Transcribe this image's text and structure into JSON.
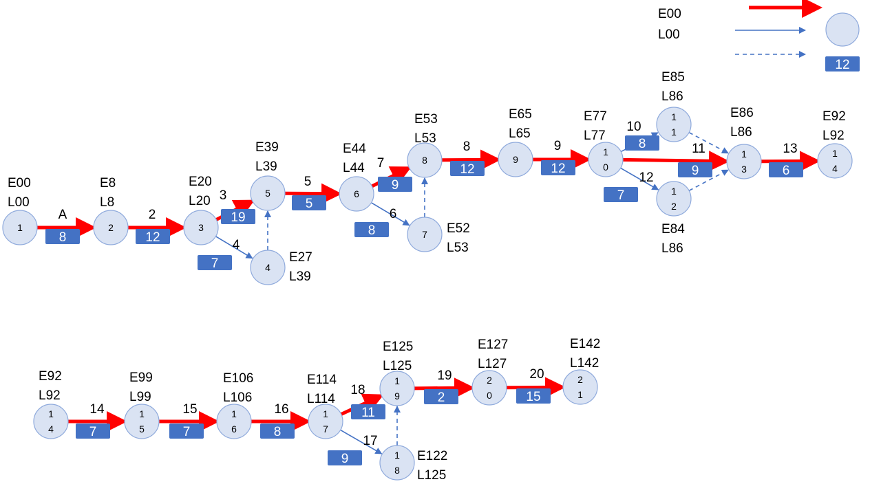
{
  "colors": {
    "critical": "#ff0000",
    "normal": "#4472c4",
    "node_fill": "#dae3f3",
    "node_stroke": "#8faadc",
    "box_fill": "#4472c4",
    "box_text": "#ffffff",
    "text": "#000000"
  },
  "legend": {
    "early": "E00",
    "late": "L00",
    "box_value": "12"
  },
  "nodes": [
    {
      "id": "1",
      "label": "1",
      "early": "E00",
      "late": "L00"
    },
    {
      "id": "2",
      "label": "2",
      "early": "E8",
      "late": "L8"
    },
    {
      "id": "3",
      "label": "3",
      "early": "E20",
      "late": "L20"
    },
    {
      "id": "4",
      "label": "4",
      "early": "E27",
      "late": "L39"
    },
    {
      "id": "5",
      "label": "5",
      "early": "E39",
      "late": "L39"
    },
    {
      "id": "6",
      "label": "6",
      "early": "E44",
      "late": "L44"
    },
    {
      "id": "7",
      "label": "7",
      "early": "E52",
      "late": "L53"
    },
    {
      "id": "8",
      "label": "8",
      "early": "E53",
      "late": "L53"
    },
    {
      "id": "9",
      "label": "9",
      "early": "E65",
      "late": "L65"
    },
    {
      "id": "10",
      "label": "1\n0",
      "early": "E77",
      "late": "L77"
    },
    {
      "id": "11",
      "label": "1\n1",
      "early": "E85",
      "late": "L86"
    },
    {
      "id": "12",
      "label": "1\n2",
      "early": "E84",
      "late": "L86"
    },
    {
      "id": "13",
      "label": "1\n3",
      "early": "E86",
      "late": "L86"
    },
    {
      "id": "14",
      "label": "1\n4",
      "early": "E92",
      "late": "L92"
    },
    {
      "id": "14b",
      "label": "1\n4",
      "early": "E92",
      "late": "L92"
    },
    {
      "id": "15",
      "label": "1\n5",
      "early": "E99",
      "late": "L99"
    },
    {
      "id": "16",
      "label": "1\n6",
      "early": "E106",
      "late": "L106"
    },
    {
      "id": "17",
      "label": "1\n7",
      "early": "E114",
      "late": "L114"
    },
    {
      "id": "18",
      "label": "1\n8",
      "early": "E122",
      "late": "L125"
    },
    {
      "id": "19",
      "label": "1\n9",
      "early": "E125",
      "late": "L125"
    },
    {
      "id": "20",
      "label": "2\n0",
      "early": "E127",
      "late": "L127"
    },
    {
      "id": "21",
      "label": "2\n1",
      "early": "E142",
      "late": "L142"
    }
  ],
  "edges": [
    {
      "from": "1",
      "to": "2",
      "activity": "A",
      "duration": "8",
      "kind": "critical"
    },
    {
      "from": "2",
      "to": "3",
      "activity": "2",
      "duration": "12",
      "kind": "critical"
    },
    {
      "from": "3",
      "to": "5",
      "activity": "3",
      "duration": "19",
      "kind": "critical"
    },
    {
      "from": "3",
      "to": "4",
      "activity": "4",
      "duration": "7",
      "kind": "normal"
    },
    {
      "from": "4",
      "to": "5",
      "activity": "",
      "duration": "",
      "kind": "dummy"
    },
    {
      "from": "5",
      "to": "6",
      "activity": "5",
      "duration": "5",
      "kind": "critical"
    },
    {
      "from": "6",
      "to": "8",
      "activity": "7",
      "duration": "9",
      "kind": "critical"
    },
    {
      "from": "6",
      "to": "7",
      "activity": "6",
      "duration": "8",
      "kind": "normal"
    },
    {
      "from": "7",
      "to": "8",
      "activity": "",
      "duration": "",
      "kind": "dummy"
    },
    {
      "from": "8",
      "to": "9",
      "activity": "8",
      "duration": "12",
      "kind": "critical"
    },
    {
      "from": "9",
      "to": "10",
      "activity": "9",
      "duration": "12",
      "kind": "critical"
    },
    {
      "from": "10",
      "to": "11",
      "activity": "10",
      "duration": "8",
      "kind": "normal"
    },
    {
      "from": "10",
      "to": "13",
      "activity": "11",
      "duration": "9",
      "kind": "critical"
    },
    {
      "from": "10",
      "to": "12",
      "activity": "12",
      "duration": "7",
      "kind": "normal"
    },
    {
      "from": "11",
      "to": "13",
      "activity": "",
      "duration": "",
      "kind": "dummy"
    },
    {
      "from": "12",
      "to": "13",
      "activity": "",
      "duration": "",
      "kind": "dummy"
    },
    {
      "from": "13",
      "to": "14",
      "activity": "13",
      "duration": "6",
      "kind": "critical"
    },
    {
      "from": "14b",
      "to": "15",
      "activity": "14",
      "duration": "7",
      "kind": "critical"
    },
    {
      "from": "15",
      "to": "16",
      "activity": "15",
      "duration": "7",
      "kind": "critical"
    },
    {
      "from": "16",
      "to": "17",
      "activity": "16",
      "duration": "8",
      "kind": "critical"
    },
    {
      "from": "17",
      "to": "19",
      "activity": "18",
      "duration": "11",
      "kind": "critical"
    },
    {
      "from": "17",
      "to": "18",
      "activity": "17",
      "duration": "9",
      "kind": "normal"
    },
    {
      "from": "18",
      "to": "19",
      "activity": "",
      "duration": "",
      "kind": "dummy"
    },
    {
      "from": "19",
      "to": "20",
      "activity": "19",
      "duration": "2",
      "kind": "critical"
    },
    {
      "from": "20",
      "to": "21",
      "activity": "20",
      "duration": "15",
      "kind": "critical"
    }
  ]
}
